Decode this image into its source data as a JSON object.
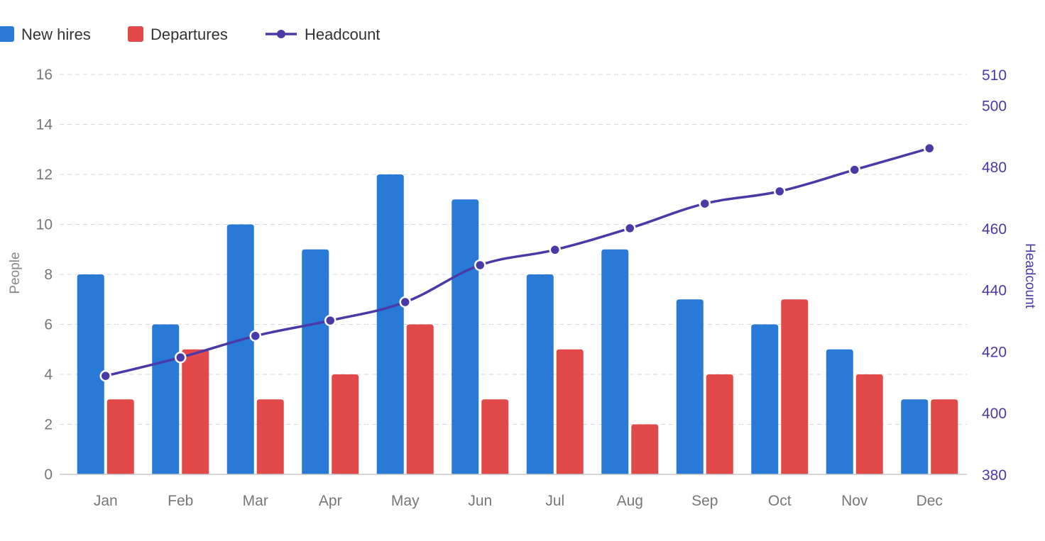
{
  "chart_data": {
    "type": "bar",
    "categories": [
      "Jan",
      "Feb",
      "Mar",
      "Apr",
      "May",
      "Jun",
      "Jul",
      "Aug",
      "Sep",
      "Oct",
      "Nov",
      "Dec"
    ],
    "series": [
      {
        "name": "New hires",
        "type": "bar",
        "axis": "left",
        "color": "#2979d6",
        "values": [
          8,
          6,
          10,
          9,
          12,
          11,
          8,
          9,
          7,
          6,
          5,
          3
        ]
      },
      {
        "name": "Departures",
        "type": "bar",
        "axis": "left",
        "color": "#e24a4a",
        "values": [
          3,
          5,
          3,
          4,
          6,
          3,
          5,
          2,
          4,
          7,
          4,
          3
        ]
      },
      {
        "name": "Headcount",
        "type": "line",
        "axis": "right",
        "color": "#4a3aa8",
        "values": [
          412,
          418,
          425,
          430,
          436,
          448,
          453,
          460,
          468,
          472,
          479,
          486
        ]
      }
    ],
    "y_left": {
      "label": "People",
      "range": [
        0,
        16
      ],
      "ticks": [
        "0",
        "2",
        "4",
        "6",
        "8",
        "10",
        "12",
        "14",
        "16"
      ]
    },
    "y_right": {
      "label": "Headcount",
      "range": [
        380,
        510
      ],
      "ticks": [
        "380",
        "400",
        "420",
        "440",
        "460",
        "480",
        "500",
        "510"
      ]
    },
    "grid": true,
    "legend_position": "top-left"
  }
}
